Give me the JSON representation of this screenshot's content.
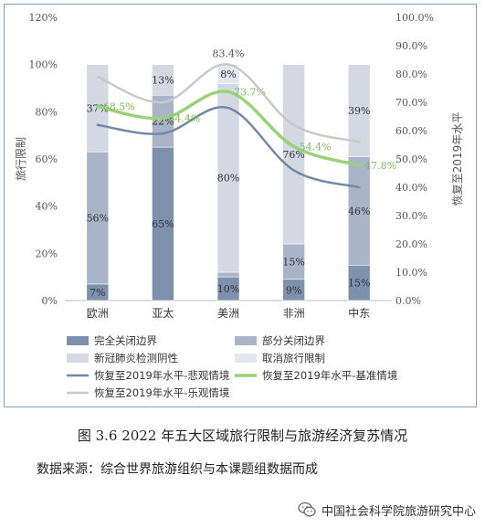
{
  "caption": {
    "title": "图 3.6   2022 年五大区域旅行限制与旅游经济复苏情况",
    "source": "数据来源：综合世界旅游组织与本课题组数据而成"
  },
  "watermark": {
    "text": "中国社会科学院旅游研究中心",
    "icon": "wechat-icon"
  },
  "chart_data": {
    "type": "bar",
    "stacked": true,
    "categories": [
      "欧洲",
      "亚太",
      "美洲",
      "非洲",
      "中东"
    ],
    "ylabel": "旅行限制",
    "y2label": "恢复至2019年水平",
    "ylim": [
      0,
      120
    ],
    "y2lim": [
      0,
      100
    ],
    "yticks": [
      "0%",
      "20%",
      "40%",
      "60%",
      "80%",
      "100%",
      "120%"
    ],
    "y2ticks": [
      "0.0%",
      "10.0%",
      "20.0%",
      "30.0%",
      "40.0%",
      "50.0%",
      "60.0%",
      "70.0%",
      "80.0%",
      "90.0%",
      "100.0%"
    ],
    "grid": false,
    "legend_position": "bottom",
    "series": [
      {
        "name": "完全关闭边界",
        "values": [
          7,
          65,
          10,
          9,
          15
        ],
        "labels": [
          "7%",
          "65%",
          "10%",
          "9%",
          "15%"
        ],
        "color": "#7d91ac"
      },
      {
        "name": "部分关闭边界",
        "values": [
          56,
          22,
          2,
          15,
          46
        ],
        "labels": [
          "56%",
          "22%",
          "2%",
          "15%",
          "46%"
        ],
        "color": "#aab4c9"
      },
      {
        "name": "新冠肺炎检测阴性",
        "values": [
          37,
          13,
          80,
          76,
          39
        ],
        "labels": [
          "37%",
          "13%",
          "80%",
          "76%",
          "39%"
        ],
        "color": "#d3d8e3"
      },
      {
        "name": "取消旅行限制",
        "values": [
          0,
          0,
          8,
          0,
          0
        ],
        "labels": [
          "",
          "",
          "8%",
          "",
          ""
        ],
        "color": "#e3e7ef"
      }
    ],
    "lines": [
      {
        "name": "恢复至2019年水平-悲观情境",
        "values": [
          62,
          59,
          68,
          46,
          40
        ],
        "labels": [
          "",
          "",
          "",
          "",
          ""
        ],
        "color": "#7388a6"
      },
      {
        "name": "恢复至2019年水平-基准情境",
        "values": [
          68.5,
          64.4,
          73.7,
          54.4,
          47.8
        ],
        "labels": [
          "68.5%",
          "64.4%",
          "73.7%",
          "54.4%",
          "47.8%"
        ],
        "color": "#9ad27a"
      },
      {
        "name": "恢复至2019年水平-乐观情境",
        "values": [
          79,
          70,
          83.4,
          62,
          56
        ],
        "labels": [
          "",
          "",
          "83.4%",
          "",
          ""
        ],
        "color": "#c8c8c8"
      }
    ]
  },
  "colors": {
    "frame": "#7f9fc5",
    "axis_text": "#555555"
  }
}
